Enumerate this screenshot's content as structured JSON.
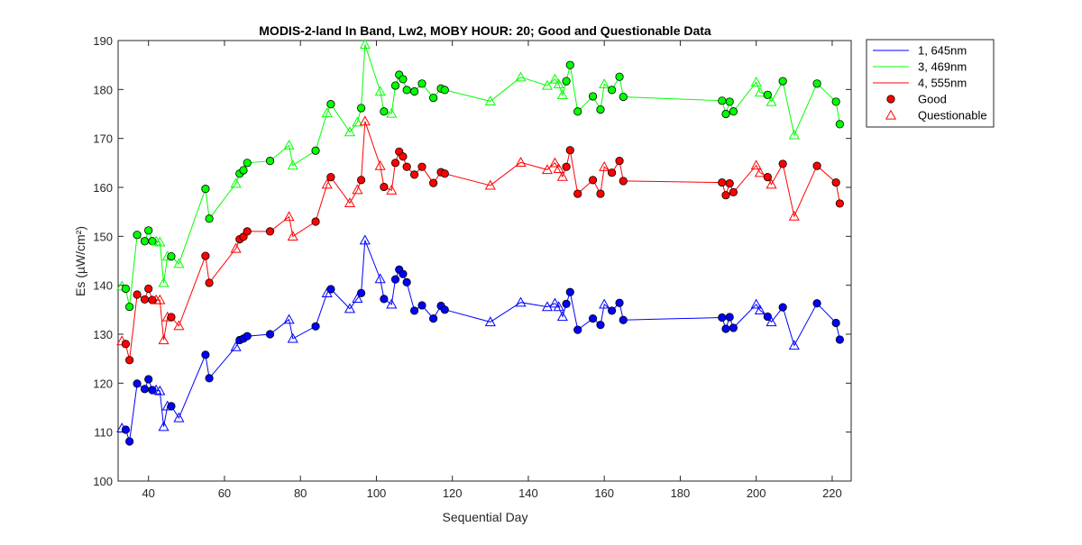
{
  "chart_data": {
    "type": "line",
    "title": "MODIS-2-land In Band,  Lw2, MOBY HOUR: 20;  Good and Questionable Data",
    "xlabel": "Sequential Day",
    "ylabel": "Es (µW/cm²)",
    "xlim": [
      32,
      225
    ],
    "ylim": [
      100,
      190
    ],
    "xticks": [
      40,
      60,
      80,
      100,
      120,
      140,
      160,
      180,
      200,
      220
    ],
    "yticks": [
      100,
      110,
      120,
      130,
      140,
      150,
      160,
      170,
      180,
      190
    ],
    "grid": false,
    "legend_position": "outside-top-right",
    "legend": [
      {
        "label": "1, 645nm",
        "kind": "line",
        "color": "#0000ff"
      },
      {
        "label": "3, 469nm",
        "kind": "line",
        "color": "#00ff00"
      },
      {
        "label": "4, 555nm",
        "kind": "line",
        "color": "#ff0000"
      },
      {
        "label": "Good",
        "kind": "circle",
        "color": "#ff0000"
      },
      {
        "label": "Questionable",
        "kind": "triangle",
        "color": "#ff0000"
      }
    ],
    "x": [
      33,
      34,
      35,
      37,
      39,
      40,
      41,
      42,
      43,
      44,
      45,
      46,
      48,
      55,
      56,
      63,
      64,
      65,
      66,
      72,
      77,
      78,
      84,
      87,
      88,
      93,
      95,
      96,
      97,
      101,
      102,
      104,
      105,
      106,
      107,
      108,
      110,
      112,
      115,
      117,
      118,
      130,
      138,
      145,
      147,
      148,
      149,
      150,
      151,
      153,
      157,
      159,
      160,
      162,
      164,
      165,
      191,
      192,
      193,
      194,
      200,
      201,
      203,
      204,
      207,
      210,
      216,
      221,
      222
    ],
    "quality": [
      "Q",
      "G",
      "G",
      "G",
      "G",
      "G",
      "G",
      "Q",
      "Q",
      "Q",
      "Q",
      "G",
      "Q",
      "G",
      "G",
      "Q",
      "G",
      "G",
      "G",
      "G",
      "Q",
      "Q",
      "G",
      "Q",
      "G",
      "Q",
      "Q",
      "G",
      "Q",
      "Q",
      "G",
      "Q",
      "G",
      "G",
      "G",
      "G",
      "G",
      "G",
      "G",
      "G",
      "G",
      "Q",
      "Q",
      "Q",
      "Q",
      "Q",
      "Q",
      "G",
      "G",
      "G",
      "G",
      "G",
      "Q",
      "G",
      "G",
      "G",
      "G",
      "G",
      "G",
      "G",
      "Q",
      "Q",
      "G",
      "Q",
      "G",
      "Q",
      "G",
      "G",
      "G"
    ],
    "series": [
      {
        "name": "1, 645nm",
        "color": "#0000ff",
        "values": [
          110.8,
          110.5,
          108.1,
          119.9,
          118.8,
          120.8,
          118.6,
          118.6,
          118.4,
          111.1,
          115.3,
          115.3,
          112.9,
          125.8,
          121.0,
          127.4,
          128.8,
          129.1,
          129.6,
          130.0,
          133.0,
          129.1,
          131.6,
          138.4,
          139.2,
          135.2,
          137.3,
          138.4,
          149.2,
          141.3,
          137.2,
          136.1,
          141.2,
          143.2,
          142.3,
          140.6,
          134.8,
          135.9,
          133.2,
          135.8,
          135.0,
          132.5,
          136.5,
          135.6,
          136.3,
          135.6,
          133.6,
          136.2,
          138.6,
          130.9,
          133.2,
          131.9,
          136.1,
          134.8,
          136.4,
          132.9,
          133.4,
          131.1,
          133.5,
          131.3,
          136.1,
          134.9,
          133.6,
          132.5,
          135.5,
          127.7,
          136.3,
          132.3,
          128.9
        ]
      },
      {
        "name": "3, 469nm",
        "color": "#00ff00",
        "values": [
          139.8,
          139.3,
          135.6,
          150.3,
          149.0,
          151.2,
          149.0,
          149.0,
          148.8,
          140.5,
          145.9,
          145.9,
          144.4,
          159.7,
          153.6,
          160.8,
          162.8,
          163.5,
          165.0,
          165.4,
          168.6,
          164.5,
          167.5,
          175.2,
          177.0,
          171.3,
          173.3,
          176.2,
          189.2,
          179.6,
          175.5,
          175.1,
          180.8,
          183.0,
          182.1,
          179.9,
          179.6,
          181.2,
          178.3,
          180.2,
          179.9,
          177.6,
          182.5,
          180.8,
          182.1,
          181.1,
          178.9,
          181.7,
          185.0,
          175.5,
          178.6,
          175.9,
          181.1,
          179.9,
          182.6,
          178.5,
          177.7,
          175.0,
          177.5,
          175.5,
          181.5,
          179.4,
          178.9,
          177.5,
          181.7,
          170.7,
          181.2,
          177.5,
          172.9
        ]
      },
      {
        "name": "4, 555nm",
        "color": "#ff0000",
        "values": [
          128.6,
          128.0,
          124.7,
          138.1,
          137.1,
          139.3,
          137.0,
          137.0,
          137.0,
          128.8,
          133.5,
          133.5,
          131.7,
          146.0,
          140.5,
          147.5,
          149.4,
          149.9,
          151.0,
          151.0,
          154.0,
          150.0,
          153.0,
          160.6,
          162.1,
          156.8,
          159.5,
          161.5,
          173.5,
          164.4,
          160.1,
          159.4,
          165.0,
          167.3,
          166.3,
          164.2,
          162.6,
          164.2,
          160.9,
          163.1,
          162.8,
          160.4,
          165.1,
          163.6,
          165.0,
          163.8,
          162.2,
          164.2,
          167.6,
          158.7,
          161.5,
          158.7,
          164.2,
          163.0,
          165.4,
          161.3,
          161.0,
          158.4,
          160.8,
          159.0,
          164.5,
          163.0,
          162.1,
          160.6,
          164.8,
          154.1,
          164.4,
          161.0,
          156.7
        ]
      }
    ]
  }
}
